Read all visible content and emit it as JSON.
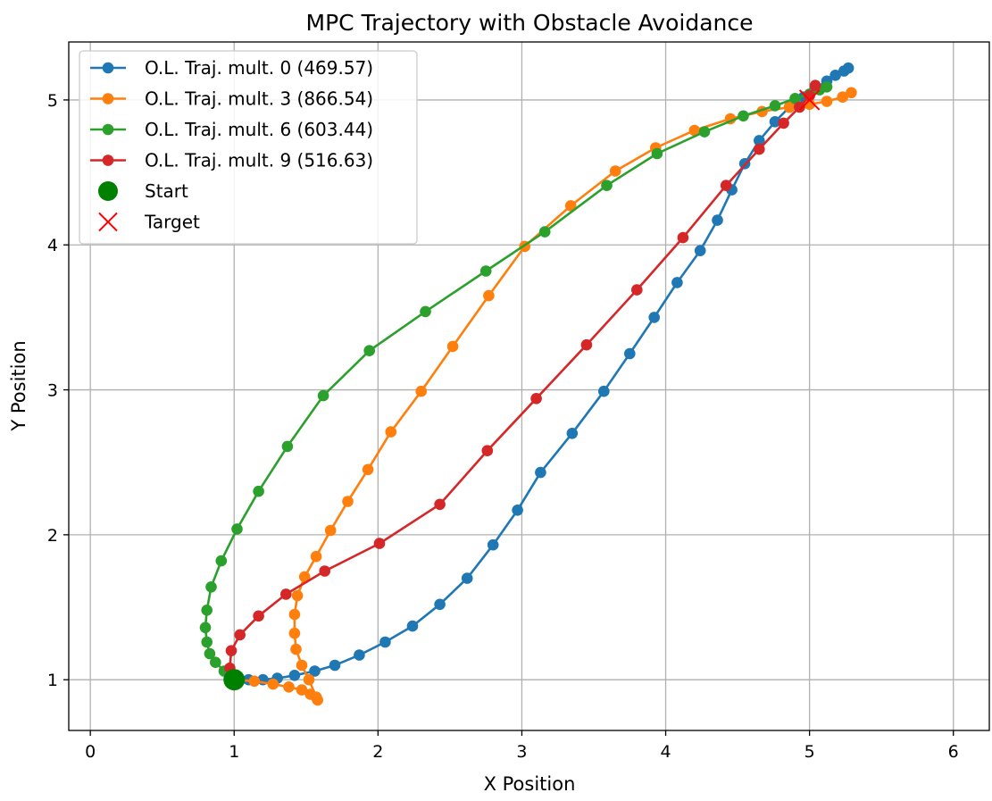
{
  "chart_data": {
    "type": "line",
    "title": "MPC Trajectory with Obstacle Avoidance",
    "xlabel": "X Position",
    "ylabel": "Y Position",
    "xlim": [
      -0.15,
      6.25
    ],
    "ylim": [
      0.65,
      5.4
    ],
    "xticks": [
      "0",
      "1",
      "2",
      "3",
      "4",
      "5",
      "6"
    ],
    "yticks": [
      "1",
      "2",
      "3",
      "4",
      "5"
    ],
    "grid": true,
    "legend_position": "top-left",
    "series": [
      {
        "name": "O.L. Traj. mult. 0 (469.57)",
        "color": "#1f77b4",
        "marker": "circle",
        "x": [
          1.0,
          1.1,
          1.2,
          1.3,
          1.42,
          1.56,
          1.7,
          1.87,
          2.05,
          2.24,
          2.43,
          2.62,
          2.8,
          2.97,
          3.13,
          3.35,
          3.57,
          3.75,
          3.92,
          4.08,
          4.24,
          4.36,
          4.46,
          4.55,
          4.65,
          4.76,
          4.86,
          4.96,
          5.04,
          5.12,
          5.18,
          5.24,
          5.27
        ],
        "y": [
          1.0,
          1.0,
          1.0,
          1.01,
          1.03,
          1.06,
          1.1,
          1.17,
          1.26,
          1.37,
          1.52,
          1.7,
          1.93,
          2.17,
          2.43,
          2.7,
          2.99,
          3.25,
          3.5,
          3.74,
          3.96,
          4.17,
          4.38,
          4.56,
          4.72,
          4.85,
          4.95,
          5.02,
          5.08,
          5.13,
          5.17,
          5.2,
          5.22
        ]
      },
      {
        "name": "O.L. Traj. mult. 3 (866.54)",
        "color": "#ff7f0e",
        "marker": "circle",
        "x": [
          1.0,
          1.14,
          1.27,
          1.38,
          1.47,
          1.53,
          1.57,
          1.58,
          1.52,
          1.47,
          1.43,
          1.42,
          1.42,
          1.44,
          1.49,
          1.57,
          1.67,
          1.79,
          1.93,
          2.09,
          2.3,
          2.52,
          2.77,
          3.02,
          3.34,
          3.65,
          3.93,
          4.2,
          4.45,
          4.67,
          4.86,
          5.0,
          5.12,
          5.23,
          5.29
        ],
        "y": [
          1.0,
          0.99,
          0.97,
          0.95,
          0.93,
          0.9,
          0.88,
          0.86,
          1.0,
          1.1,
          1.21,
          1.32,
          1.45,
          1.58,
          1.71,
          1.85,
          2.03,
          2.23,
          2.45,
          2.71,
          2.99,
          3.3,
          3.65,
          3.99,
          4.27,
          4.51,
          4.67,
          4.79,
          4.87,
          4.92,
          4.95,
          4.97,
          4.99,
          5.02,
          5.05
        ]
      },
      {
        "name": "O.L. Traj. mult. 6 (603.44)",
        "color": "#2ca02c",
        "marker": "circle",
        "x": [
          1.0,
          0.93,
          0.87,
          0.83,
          0.81,
          0.8,
          0.81,
          0.84,
          0.91,
          1.02,
          1.17,
          1.37,
          1.62,
          1.94,
          2.33,
          2.75,
          3.16,
          3.59,
          3.94,
          4.27,
          4.54,
          4.76,
          4.9,
          5.0,
          5.07,
          5.12
        ],
        "y": [
          1.0,
          1.06,
          1.12,
          1.18,
          1.26,
          1.36,
          1.48,
          1.64,
          1.82,
          2.04,
          2.3,
          2.61,
          2.96,
          3.27,
          3.54,
          3.82,
          4.09,
          4.41,
          4.63,
          4.78,
          4.89,
          4.96,
          5.01,
          5.04,
          5.07,
          5.09
        ]
      },
      {
        "name": "O.L. Traj. mult. 9 (516.63)",
        "color": "#d62728",
        "marker": "circle",
        "x": [
          0.97,
          0.98,
          1.04,
          1.17,
          1.36,
          1.63,
          2.01,
          2.43,
          2.76,
          3.1,
          3.45,
          3.8,
          4.12,
          4.42,
          4.65,
          4.82,
          4.93,
          5.0,
          5.04
        ],
        "y": [
          1.08,
          1.2,
          1.31,
          1.44,
          1.59,
          1.75,
          1.94,
          2.21,
          2.58,
          2.94,
          3.31,
          3.69,
          4.05,
          4.41,
          4.66,
          4.84,
          4.95,
          5.03,
          5.1
        ]
      }
    ],
    "start": {
      "name": "Start",
      "x": 1.0,
      "y": 1.0,
      "color": "#008000"
    },
    "target": {
      "name": "Target",
      "x": 5.0,
      "y": 5.0,
      "color": "#ff0000"
    }
  }
}
